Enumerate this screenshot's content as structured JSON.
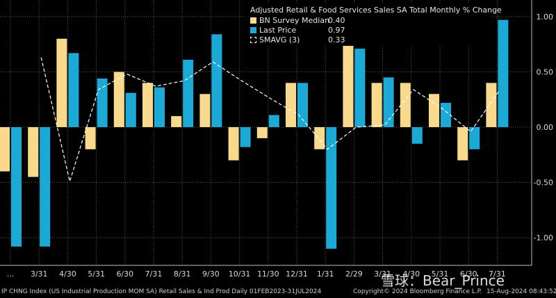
{
  "chart_data": {
    "type": "bar",
    "title": "Adjusted Retail & Food Services Sales SA Total Monthly % Change",
    "categories": [
      "...",
      "3/31",
      "4/30",
      "5/31",
      "6/30",
      "7/31",
      "8/31",
      "9/30",
      "10/31",
      "11/30",
      "12/31",
      "1/31",
      "2/29",
      "3/31",
      "4/30",
      "5/31",
      "6/30",
      "7/31"
    ],
    "series": [
      {
        "name": "BN Survey Median",
        "color": "#f9d98c",
        "values": [
          -0.4,
          -0.45,
          0.8,
          -0.2,
          0.5,
          0.4,
          0.1,
          0.3,
          -0.3,
          -0.1,
          0.4,
          -0.2,
          0.8,
          0.4,
          0.4,
          0.3,
          -0.3,
          0.4
        ]
      },
      {
        "name": "Last Price",
        "color": "#1ba9d6",
        "values": [
          -1.08,
          -1.08,
          0.67,
          0.44,
          0.31,
          0.36,
          0.61,
          0.84,
          -0.18,
          0.11,
          0.4,
          -1.1,
          0.71,
          0.45,
          -0.15,
          0.22,
          -0.2,
          0.97
        ]
      },
      {
        "name": "SMAVG (3)",
        "color": "#ffffff",
        "line": true,
        "values": [
          null,
          0.63,
          -0.49,
          0.34,
          0.48,
          0.37,
          0.42,
          0.59,
          0.42,
          0.26,
          0.11,
          -0.2,
          0.0,
          0.02,
          0.34,
          0.17,
          -0.04,
          0.33
        ]
      }
    ],
    "legend_values": [
      "0.40",
      "0.97",
      "0.33"
    ],
    "yticks": [
      "1.00",
      "0.50",
      "0.00",
      "-0.50",
      "-1.00"
    ],
    "ylim": [
      -1.25,
      1.15
    ],
    "grid": true,
    "legend_position": "top-right",
    "y_axis_side": "right"
  },
  "footer": {
    "left": "IP CHNG Index (US Industrial Production MOM SA) Retail Sales & Ind Prod  Daily 01FEB2023-31JUL2024",
    "center": "Copyright© 2024 Bloomberg Finance L.P.",
    "right": "15-Aug-2024 08:43:52"
  },
  "watermark": "雪球：Bear_Prince",
  "colors": {
    "background": "#000000",
    "grid": "#5a5a5a"
  }
}
